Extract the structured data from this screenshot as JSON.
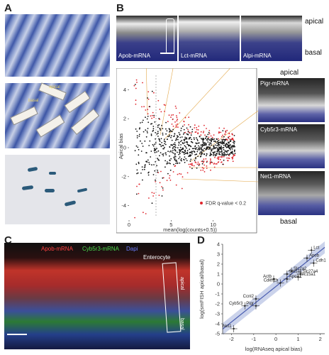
{
  "panels": {
    "a": "A",
    "b": "B",
    "c": "C",
    "d": "D"
  },
  "panel_a": {
    "mid_labels": [
      "apical",
      "basal"
    ]
  },
  "panel_b": {
    "top_images": [
      "Apob-mRNA",
      "Lct-mRNA",
      "Alpi-mRNA"
    ],
    "apical_label": "apical",
    "basal_label": "basal",
    "side_images": [
      "Pigr-mRNA",
      "Cyb5r3-mRNA",
      "Net1-mRNA"
    ],
    "side_apical": "apical",
    "side_basal": "basal",
    "legend": "FDR q-value < 0.2"
  },
  "panel_c": {
    "legend_apob": "Apob-mRNA",
    "legend_cyb": "Cyb5r3-mRNA",
    "legend_dapi": "Dapi",
    "enterocyte": "Enterocyte",
    "apical": "apical",
    "basal": "basal"
  },
  "chart_data": [
    {
      "type": "scatter",
      "title": "",
      "xlabel": "mean(log(counts+0.5))",
      "ylabel": "Apical bias",
      "xlim": [
        0,
        15
      ],
      "ylim": [
        -5,
        5
      ],
      "xticks": [
        "0",
        "5",
        "10"
      ],
      "yticks": [
        "4",
        "2",
        "0",
        "-2",
        "-4"
      ],
      "legend": "FDR q-value < 0.2",
      "series_colors": {
        "significant": "#e0262d",
        "other": "#111111"
      }
    },
    {
      "type": "scatter",
      "title": "",
      "xlabel": "log(RNAseq apical bias)",
      "ylabel": "log(smFISH apical/basal)",
      "xlim": [
        -2.4,
        2.2
      ],
      "ylim": [
        -5,
        4
      ],
      "xticks": [
        "-2",
        "-1",
        "0",
        "1",
        "2"
      ],
      "yticks": [
        "4",
        "3",
        "2",
        "1",
        "0",
        "-1",
        "-2",
        "-3",
        "-4",
        "-5"
      ],
      "points": [
        {
          "label": "Lct",
          "x": 1.6,
          "y": 3.4
        },
        {
          "label": "Apob",
          "x": 1.4,
          "y": 2.6
        },
        {
          "label": "Cdh1",
          "x": 1.7,
          "y": 2.1
        },
        {
          "label": "Slc2a2",
          "x": 0.7,
          "y": 1.3
        },
        {
          "label": "Slc5a1",
          "x": 0.5,
          "y": 1.0
        },
        {
          "label": "Slc27a4",
          "x": 1.1,
          "y": 1.0
        },
        {
          "label": "Slc15a1",
          "x": 1.0,
          "y": 0.7
        },
        {
          "label": "Actb",
          "x": -0.1,
          "y": 0.5
        },
        {
          "label": "Apoa1",
          "x": 0.5,
          "y": 0.5
        },
        {
          "label": "Cdkn1a",
          "x": 0.2,
          "y": 0.1
        },
        {
          "label": "Ccnl2",
          "x": -0.9,
          "y": -1.5
        },
        {
          "label": "Cyb5r3",
          "x": -1.4,
          "y": -2.2
        },
        {
          "label": "Pigr",
          "x": -0.9,
          "y": -2.2
        },
        {
          "label": "Net1",
          "x": -1.9,
          "y": -4.5
        }
      ]
    }
  ]
}
